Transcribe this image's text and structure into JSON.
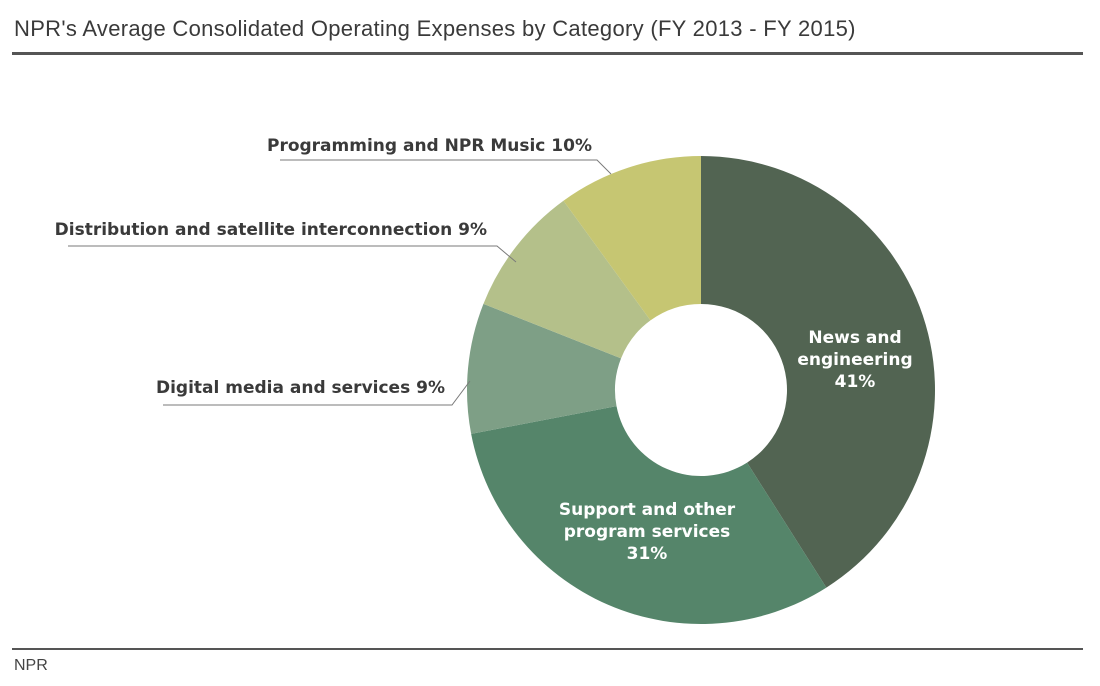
{
  "header": {
    "title": "NPR's Average Consolidated Operating Expenses by Category (FY 2013 - FY 2015)"
  },
  "footer": {
    "source": "NPR"
  },
  "chart_data": {
    "type": "pie",
    "variant": "donut",
    "title": "NPR's Average Consolidated Operating Expenses by Category (FY 2013 - FY 2015)",
    "unit": "%",
    "slices": [
      {
        "label": "News and engineering",
        "value": 41,
        "label_lines": [
          "News and",
          "engineering",
          "41%"
        ],
        "color": "#526452",
        "label_inside": true
      },
      {
        "label": "Support and other program services",
        "value": 31,
        "label_lines": [
          "Support and other",
          "program services",
          "31%"
        ],
        "color": "#55856a",
        "label_inside": true
      },
      {
        "label": "Digital media and services",
        "value": 9,
        "label_lines": [
          "Digital media and services 9%"
        ],
        "color": "#7e9f86",
        "label_inside": false
      },
      {
        "label": "Distribution and satellite interconnection",
        "value": 9,
        "label_lines": [
          "Distribution and satellite interconnection 9%"
        ],
        "color": "#b4c08a",
        "label_inside": false
      },
      {
        "label": "Programming and NPR Music",
        "value": 10,
        "label_lines": [
          "Programming and NPR Music 10%"
        ],
        "color": "#c6c672",
        "label_inside": false
      }
    ]
  }
}
